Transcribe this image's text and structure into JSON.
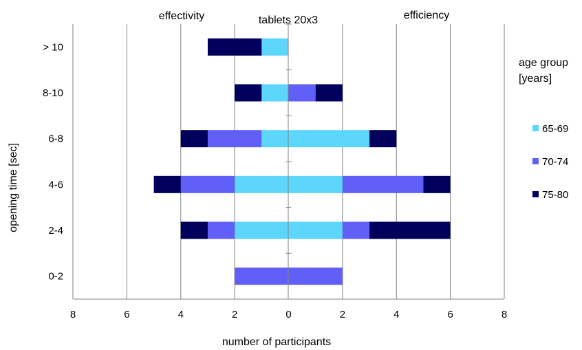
{
  "chart_data": {
    "type": "bar",
    "orientation": "horizontal-diverging",
    "title": "tablets 20x3",
    "left_side_label": "effectivity",
    "right_side_label": "efficiency",
    "xlabel": "number of participants",
    "ylabel": "opening time [sec]",
    "xlim": [
      -8,
      8
    ],
    "x_ticks": [
      -8,
      -6,
      -4,
      -2,
      0,
      2,
      4,
      6,
      8
    ],
    "x_tick_labels": [
      "8",
      "6",
      "4",
      "2",
      "0",
      "2",
      "4",
      "6",
      "8"
    ],
    "grid": "vertical",
    "legend": {
      "title_lines": [
        "age group",
        "[years]"
      ],
      "placement": "right"
    },
    "categories": [
      "> 10",
      "8-10",
      "6-8",
      "4-6",
      "2-4",
      "0-2"
    ],
    "series": [
      {
        "name": "65-69",
        "color": "#5dd6fb",
        "effectivity": [
          1,
          1,
          1,
          2,
          2,
          0
        ],
        "efficiency": [
          0,
          0,
          3,
          2,
          2,
          0
        ]
      },
      {
        "name": "70-74",
        "color": "#6060f8",
        "effectivity": [
          0,
          0,
          2,
          2,
          1,
          2
        ],
        "efficiency": [
          0,
          1,
          0,
          3,
          1,
          2
        ]
      },
      {
        "name": "75-80",
        "color": "#00005c",
        "effectivity": [
          2,
          1,
          1,
          1,
          1,
          0
        ],
        "efficiency": [
          0,
          1,
          1,
          1,
          3,
          0
        ]
      }
    ]
  }
}
